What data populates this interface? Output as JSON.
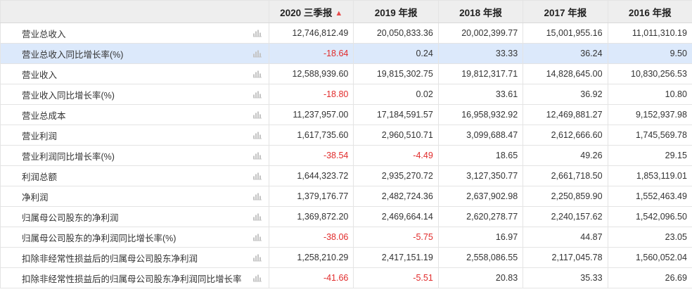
{
  "columns": [
    "2020 三季报",
    "2019 年报",
    "2018 年报",
    "2017 年报",
    "2016 年报"
  ],
  "colors": {
    "negative": "#e12b2b",
    "highlight_row": "#dce9fb",
    "header_bg": "#eeeeee"
  },
  "rows": [
    {
      "label": "营业总收入",
      "values": [
        "12,746,812.49",
        "20,050,833.36",
        "20,002,399.77",
        "15,001,955.16",
        "11,011,310.19"
      ]
    },
    {
      "label": "营业总收入同比增长率(%)",
      "values": [
        "-18.64",
        "0.24",
        "33.33",
        "36.24",
        "9.50"
      ],
      "highlighted": true
    },
    {
      "label": "营业收入",
      "values": [
        "12,588,939.60",
        "19,815,302.75",
        "19,812,317.71",
        "14,828,645.00",
        "10,830,256.53"
      ]
    },
    {
      "label": "营业收入同比增长率(%)",
      "values": [
        "-18.80",
        "0.02",
        "33.61",
        "36.92",
        "10.80"
      ]
    },
    {
      "label": "营业总成本",
      "values": [
        "11,237,957.00",
        "17,184,591.57",
        "16,958,932.92",
        "12,469,881.27",
        "9,152,937.98"
      ]
    },
    {
      "label": "营业利润",
      "values": [
        "1,617,735.60",
        "2,960,510.71",
        "3,099,688.47",
        "2,612,666.60",
        "1,745,569.78"
      ]
    },
    {
      "label": "营业利润同比增长率(%)",
      "values": [
        "-38.54",
        "-4.49",
        "18.65",
        "49.26",
        "29.15"
      ]
    },
    {
      "label": "利润总额",
      "values": [
        "1,644,323.72",
        "2,935,270.72",
        "3,127,350.77",
        "2,661,718.50",
        "1,853,119.01"
      ]
    },
    {
      "label": "净利润",
      "values": [
        "1,379,176.77",
        "2,482,724.36",
        "2,637,902.98",
        "2,250,859.90",
        "1,552,463.49"
      ]
    },
    {
      "label": "归属母公司股东的净利润",
      "values": [
        "1,369,872.20",
        "2,469,664.14",
        "2,620,278.77",
        "2,240,157.62",
        "1,542,096.50"
      ]
    },
    {
      "label": "归属母公司股东的净利润同比增长率(%)",
      "values": [
        "-38.06",
        "-5.75",
        "16.97",
        "44.87",
        "23.05"
      ]
    },
    {
      "label": "扣除非经常性损益后的归属母公司股东净利润",
      "values": [
        "1,258,210.29",
        "2,417,151.19",
        "2,558,086.55",
        "2,117,045.78",
        "1,560,052.04"
      ]
    },
    {
      "label": "扣除非经常性损益后的归属母公司股东净利润同比增长率",
      "values": [
        "-41.66",
        "-5.51",
        "20.83",
        "35.33",
        "26.69"
      ]
    }
  ]
}
